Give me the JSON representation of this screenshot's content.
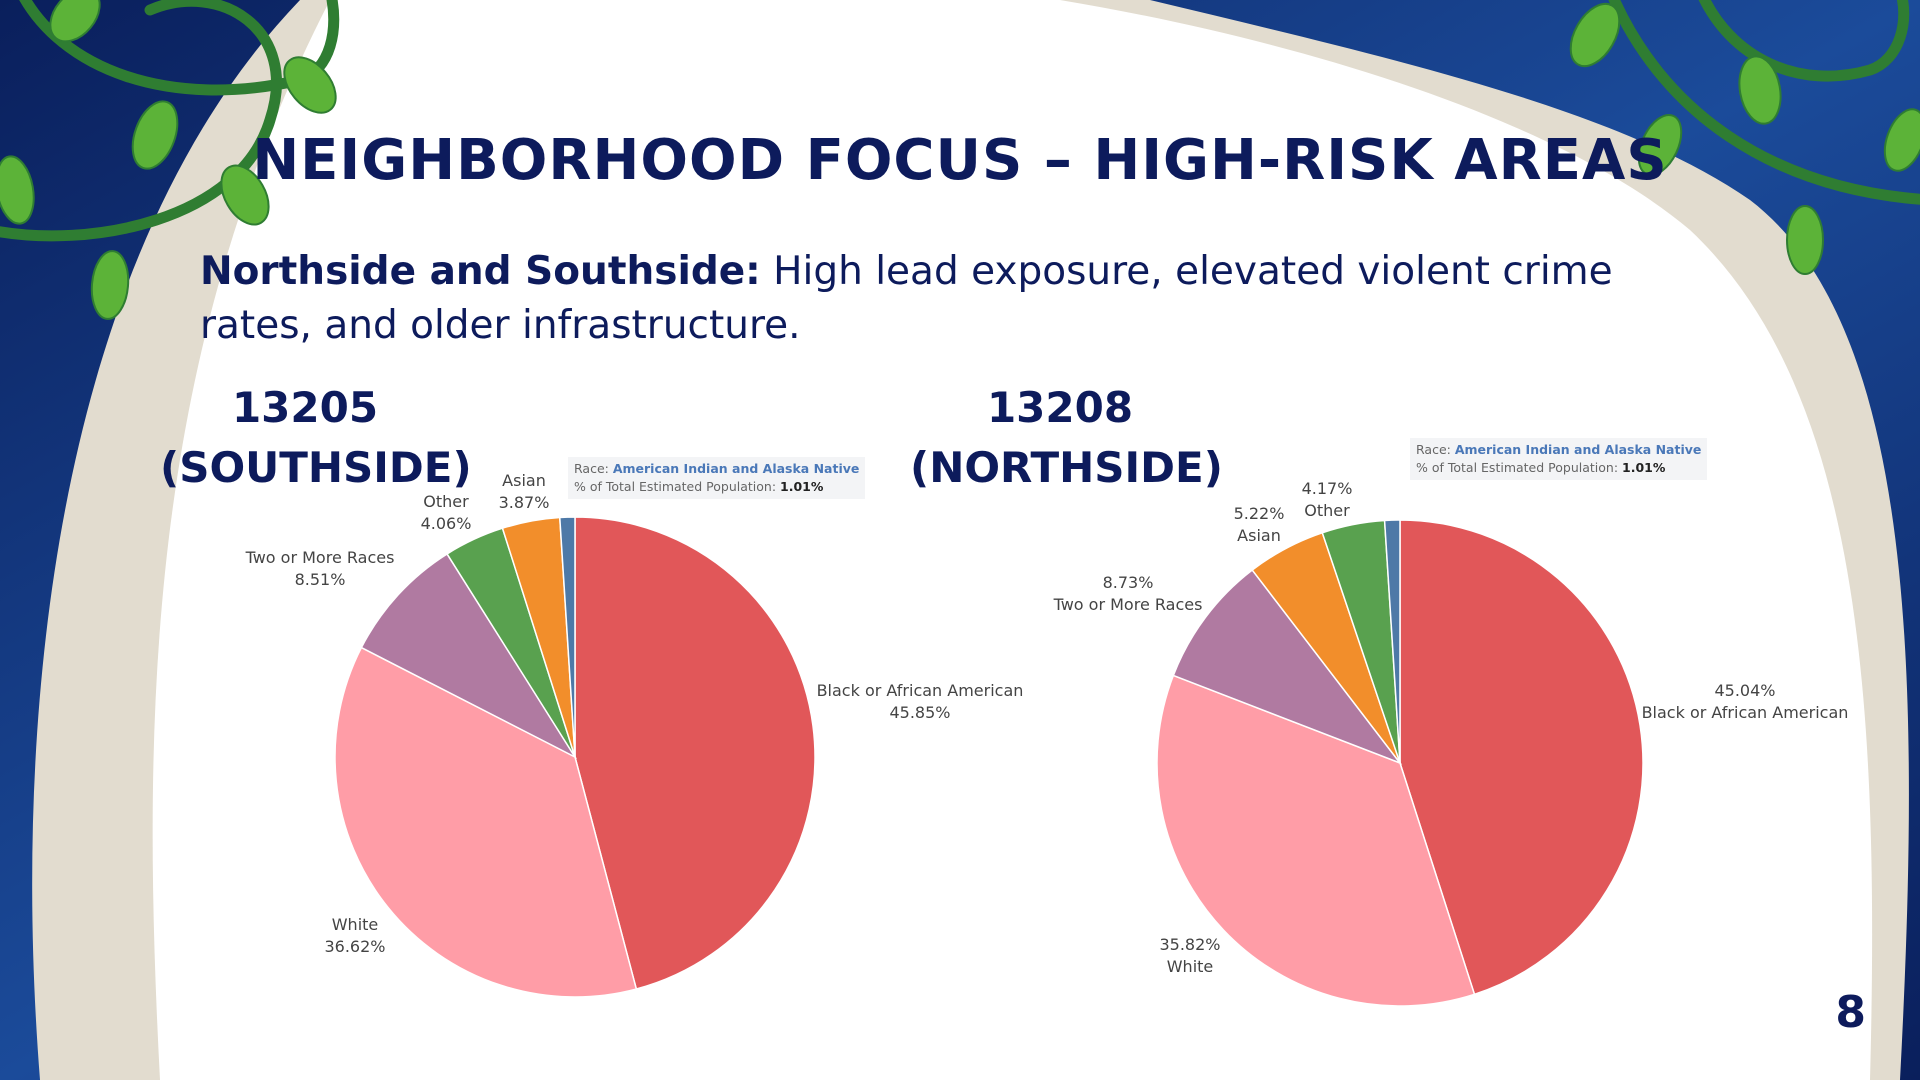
{
  "slide": {
    "title": "NEIGHBORHOOD FOCUS – HIGH-RISK AREAS",
    "subtitle_lead": "Northside and Southside:",
    "subtitle_rest": " High lead exposure, elevated violent crime rates, and older infrastructure.",
    "page_number": "8"
  },
  "colors": {
    "Black or African American": "#e15759",
    "White": "#ff9da7",
    "Two or More Races": "#b07aa1",
    "Other": "#59a14f",
    "Asian": "#f28e2b",
    "American Indian and Alaska Native": "#4e79a7"
  },
  "charts": [
    {
      "zip_line1": "13205",
      "zip_line2": "(SOUTHSIDE)",
      "tooltip": {
        "race_prefix": "Race: ",
        "race_value": "American Indian and Alaska Native",
        "pct_prefix": "% of Total Estimated Population: ",
        "pct_value": "1.01%"
      }
    },
    {
      "zip_line1": "13208",
      "zip_line2": "(NORTHSIDE)",
      "tooltip": {
        "race_prefix": "Race: ",
        "race_value": "American Indian and Alaska Native",
        "pct_prefix": "% of Total Estimated Population: ",
        "pct_value": "1.01%"
      }
    }
  ],
  "chart_data": [
    {
      "type": "pie",
      "categories": [
        "Black or African American",
        "White",
        "Two or More Races",
        "Other",
        "Asian",
        "American Indian and Alaska Native"
      ],
      "values": [
        45.85,
        36.62,
        8.51,
        4.06,
        3.87,
        1.01
      ],
      "labels": [
        "45.85%",
        "36.62%",
        "8.51%",
        "4.06%",
        "3.87%",
        "1.01%"
      ]
    },
    {
      "type": "pie",
      "categories": [
        "Black or African American",
        "White",
        "Two or More Races",
        "Asian",
        "Other",
        "American Indian and Alaska Native"
      ],
      "values": [
        45.04,
        35.82,
        8.73,
        5.22,
        4.17,
        1.01
      ],
      "labels": [
        "45.04%",
        "35.82%",
        "8.73%",
        "5.22%",
        "4.17%",
        "1.01%"
      ]
    }
  ]
}
